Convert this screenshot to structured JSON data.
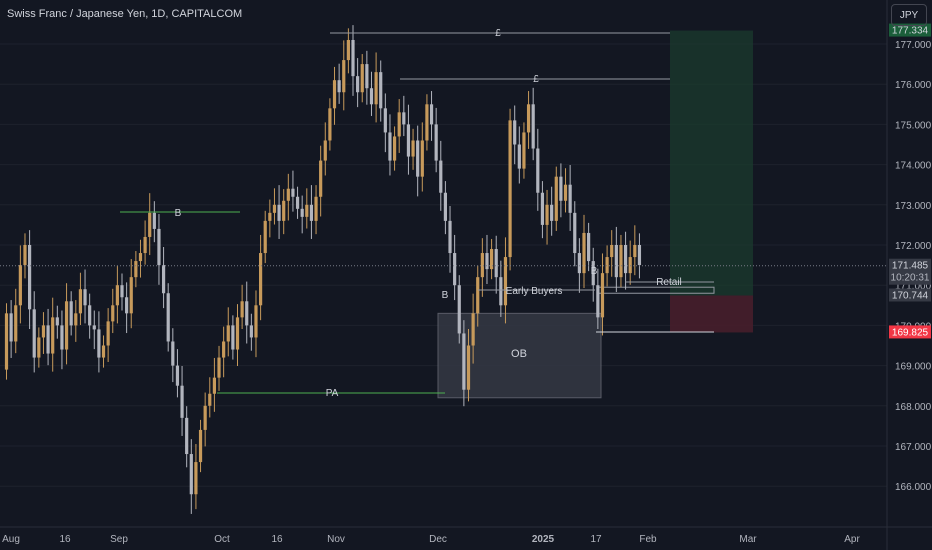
{
  "header": {
    "title": "Swiss Franc / Japanese Yen, 1D, CAPITALCOM",
    "currency_button": "JPY"
  },
  "chart_data": {
    "type": "candlestick",
    "symbol": "Swiss Franc / Japanese Yen",
    "interval": "1D",
    "source": "CAPITALCOM",
    "y_ticks": [
      166.0,
      167.0,
      168.0,
      169.0,
      170.0,
      171.0,
      172.0,
      173.0,
      174.0,
      175.0,
      176.0,
      177.0
    ],
    "ylim": [
      165.5,
      177.4
    ],
    "x_ticks": [
      {
        "label": "Aug",
        "date": "2024-08-01",
        "bold": false
      },
      {
        "label": "16",
        "date": "2024-08-16",
        "bold": false
      },
      {
        "label": "Sep",
        "date": "2024-09-01",
        "bold": false
      },
      {
        "label": "Oct",
        "date": "2024-10-01",
        "bold": false
      },
      {
        "label": "16",
        "date": "2024-10-16",
        "bold": false
      },
      {
        "label": "Nov",
        "date": "2024-11-01",
        "bold": false
      },
      {
        "label": "Dec",
        "date": "2024-12-01",
        "bold": false
      },
      {
        "label": "2025",
        "date": "2025-01-01",
        "bold": true
      },
      {
        "label": "17",
        "date": "2025-01-17",
        "bold": false
      },
      {
        "label": "Feb",
        "date": "2025-02-01",
        "bold": false
      },
      {
        "label": "Mar",
        "date": "2025-03-01",
        "bold": false
      },
      {
        "label": "Apr",
        "date": "2025-04-01",
        "bold": false
      }
    ],
    "colors": {
      "background": "#131722",
      "up_candle": "#c79a5b",
      "down_candle": "#b2b5be",
      "axis_text": "#b2b5be",
      "current_price": "#363a45",
      "stop_loss": "#f23645",
      "target_zone": "#1b3b2e",
      "stop_zone": "#4a1f2b",
      "ob_box": "#363a45",
      "guide_line": "#787b86",
      "pa_line": "#4caf50"
    },
    "price_labels": [
      {
        "name": "target",
        "value": 177.334,
        "text": "177.334"
      },
      {
        "name": "current",
        "value": 171.485,
        "text": "171.485",
        "sub": "10:20:31"
      },
      {
        "name": "entry",
        "value": 170.744,
        "text": "170.744"
      },
      {
        "name": "stop",
        "value": 169.825,
        "text": "169.825"
      }
    ],
    "candles": [
      [
        168.9,
        170.3
      ],
      [
        170.3,
        169.6
      ],
      [
        169.6,
        170.5
      ],
      [
        170.5,
        171.5
      ],
      [
        171.5,
        172.0
      ],
      [
        172.0,
        170.4
      ],
      [
        170.4,
        169.2
      ],
      [
        169.2,
        169.7
      ],
      [
        169.7,
        170.0
      ],
      [
        170.0,
        169.3
      ],
      [
        169.3,
        170.2
      ],
      [
        170.2,
        170.0
      ],
      [
        170.0,
        169.4
      ],
      [
        169.4,
        170.6
      ],
      [
        170.6,
        170.0
      ],
      [
        170.0,
        170.3
      ],
      [
        170.3,
        170.9
      ],
      [
        170.9,
        170.5
      ],
      [
        170.5,
        170.0
      ],
      [
        170.0,
        169.9
      ],
      [
        169.9,
        169.2
      ],
      [
        169.2,
        169.5
      ],
      [
        169.5,
        170.1
      ],
      [
        170.1,
        170.5
      ],
      [
        170.5,
        171.0
      ],
      [
        171.0,
        170.7
      ],
      [
        170.7,
        170.3
      ],
      [
        170.3,
        171.2
      ],
      [
        171.2,
        171.6
      ],
      [
        171.6,
        171.8
      ],
      [
        171.8,
        172.2
      ],
      [
        172.2,
        172.8
      ],
      [
        172.8,
        172.4
      ],
      [
        172.4,
        171.5
      ],
      [
        171.5,
        170.8
      ],
      [
        170.8,
        169.6
      ],
      [
        169.6,
        169.0
      ],
      [
        169.0,
        168.5
      ],
      [
        168.5,
        167.7
      ],
      [
        167.7,
        166.8
      ],
      [
        166.8,
        165.8
      ],
      [
        165.8,
        166.6
      ],
      [
        166.6,
        167.4
      ],
      [
        167.4,
        168.0
      ],
      [
        168.0,
        168.3
      ],
      [
        168.3,
        168.7
      ],
      [
        168.7,
        169.2
      ],
      [
        169.2,
        169.6
      ],
      [
        169.6,
        170.0
      ],
      [
        170.0,
        169.4
      ],
      [
        169.4,
        170.2
      ],
      [
        170.2,
        170.6
      ],
      [
        170.6,
        170.0
      ],
      [
        170.0,
        169.7
      ],
      [
        169.7,
        170.5
      ],
      [
        170.5,
        171.8
      ],
      [
        171.8,
        172.6
      ],
      [
        172.6,
        172.8
      ],
      [
        172.8,
        173.0
      ],
      [
        173.0,
        172.6
      ],
      [
        172.6,
        173.1
      ],
      [
        173.1,
        173.4
      ],
      [
        173.4,
        173.2
      ],
      [
        173.2,
        172.9
      ],
      [
        172.9,
        172.7
      ],
      [
        172.7,
        173.0
      ],
      [
        173.0,
        172.6
      ],
      [
        172.6,
        173.2
      ],
      [
        173.2,
        174.1
      ],
      [
        174.1,
        174.6
      ],
      [
        174.6,
        175.4
      ],
      [
        175.4,
        176.1
      ],
      [
        176.1,
        175.8
      ],
      [
        175.8,
        176.6
      ],
      [
        176.6,
        177.1
      ],
      [
        177.1,
        176.2
      ],
      [
        176.2,
        175.8
      ],
      [
        175.8,
        176.5
      ],
      [
        176.5,
        175.9
      ],
      [
        175.9,
        175.5
      ],
      [
        175.5,
        176.3
      ],
      [
        176.3,
        175.4
      ],
      [
        175.4,
        174.8
      ],
      [
        174.8,
        174.1
      ],
      [
        174.1,
        174.7
      ],
      [
        174.7,
        175.3
      ],
      [
        175.3,
        175.0
      ],
      [
        175.0,
        174.2
      ],
      [
        174.2,
        174.6
      ],
      [
        174.6,
        173.7
      ],
      [
        173.7,
        174.6
      ],
      [
        174.6,
        175.5
      ],
      [
        175.5,
        175.0
      ],
      [
        175.0,
        174.1
      ],
      [
        174.1,
        173.3
      ],
      [
        173.3,
        172.6
      ],
      [
        172.6,
        171.8
      ],
      [
        171.8,
        171.0
      ],
      [
        171.0,
        169.8
      ],
      [
        169.8,
        168.4
      ],
      [
        168.4,
        169.5
      ],
      [
        169.5,
        170.3
      ],
      [
        170.3,
        171.2
      ],
      [
        171.2,
        171.8
      ],
      [
        171.8,
        171.4
      ],
      [
        171.4,
        171.9
      ],
      [
        171.9,
        171.2
      ],
      [
        171.2,
        170.5
      ],
      [
        170.5,
        171.7
      ],
      [
        171.7,
        175.1
      ],
      [
        175.1,
        174.5
      ],
      [
        174.5,
        173.9
      ],
      [
        173.9,
        174.8
      ],
      [
        174.8,
        175.5
      ],
      [
        175.5,
        174.4
      ],
      [
        174.4,
        173.3
      ],
      [
        173.3,
        172.5
      ],
      [
        172.5,
        173.0
      ],
      [
        173.0,
        172.6
      ],
      [
        172.6,
        173.7
      ],
      [
        173.7,
        173.1
      ],
      [
        173.1,
        173.5
      ],
      [
        173.5,
        172.8
      ],
      [
        172.8,
        171.8
      ],
      [
        171.8,
        171.3
      ],
      [
        171.3,
        172.3
      ],
      [
        172.3,
        171.6
      ],
      [
        171.6,
        171.0
      ],
      [
        171.0,
        170.2
      ],
      [
        170.2,
        171.3
      ],
      [
        171.3,
        171.7
      ],
      [
        171.7,
        172.0
      ],
      [
        172.0,
        171.2
      ],
      [
        171.2,
        172.0
      ],
      [
        172.0,
        171.3
      ],
      [
        171.3,
        171.7
      ],
      [
        171.7,
        172.0
      ],
      [
        172.0,
        171.5
      ]
    ],
    "annotations": [
      {
        "name": "target-high-marker",
        "text": "£"
      },
      {
        "name": "lower-high-marker",
        "text": "£"
      },
      {
        "name": "break-marker-1",
        "text": "B"
      },
      {
        "name": "break-marker-2",
        "text": "B"
      },
      {
        "name": "break-marker-3",
        "text": "B"
      },
      {
        "name": "pa-label",
        "text": "PA"
      },
      {
        "name": "early-buyers-label",
        "text": "Early Buyers"
      },
      {
        "name": "retail-label",
        "text": "Retail"
      },
      {
        "name": "ob-label",
        "text": "OB"
      }
    ]
  }
}
